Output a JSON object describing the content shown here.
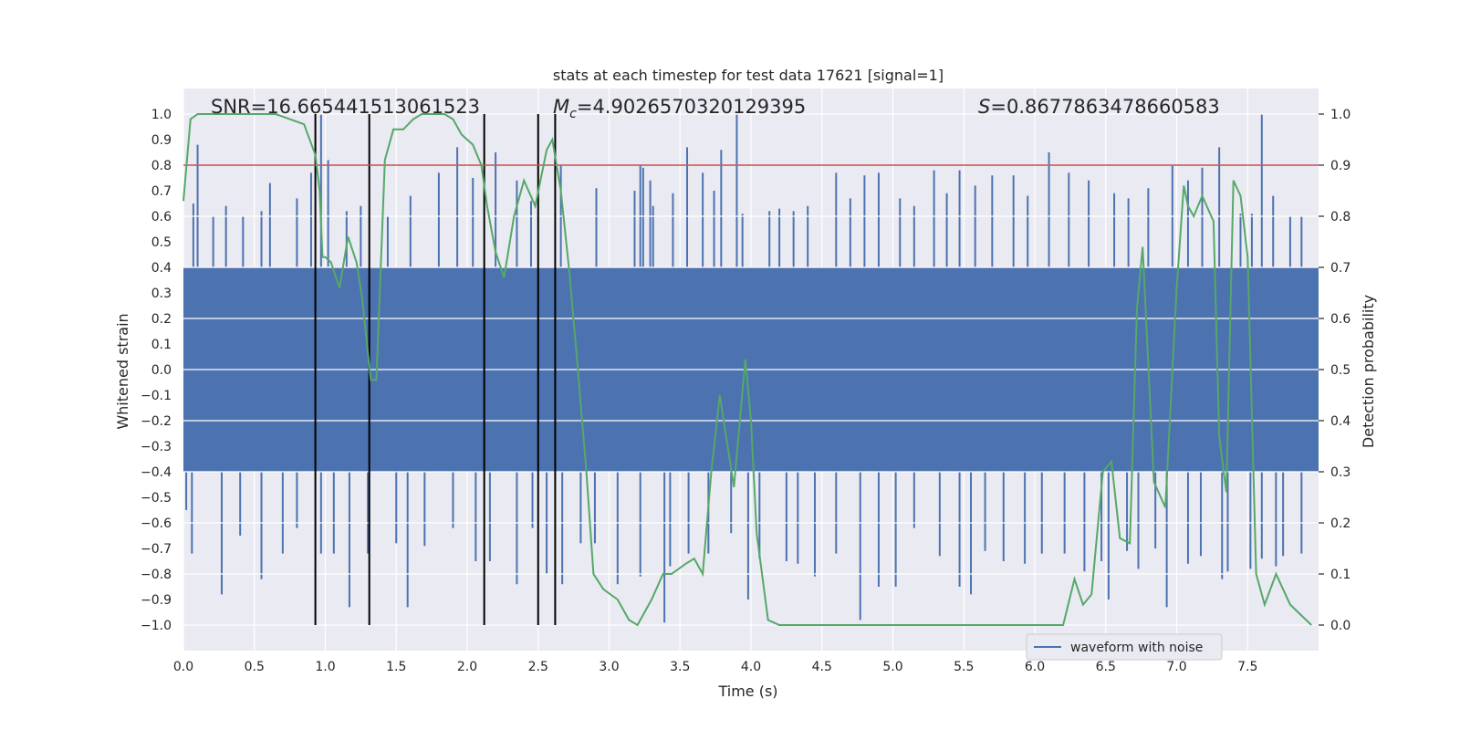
{
  "chart_data": {
    "type": "line",
    "title": "stats at each timestep for test data 17621 [signal=1]",
    "xlabel": "Time (s)",
    "ylabel": "Whitened strain",
    "y2label": "Detection probability",
    "xlim": [
      0.0,
      8.0
    ],
    "ylim": [
      -1.1,
      1.1
    ],
    "y2lim": [
      -0.05,
      1.05
    ],
    "grid": true,
    "legend_position": "lower-right",
    "x_ticks": [
      "0.0",
      "0.5",
      "1.0",
      "1.5",
      "2.0",
      "2.5",
      "3.0",
      "3.5",
      "4.0",
      "4.5",
      "5.0",
      "5.5",
      "6.0",
      "6.5",
      "7.0",
      "7.5"
    ],
    "y_ticks": [
      "1.0",
      "0.9",
      "0.8",
      "0.7",
      "0.6",
      "0.5",
      "0.4",
      "0.3",
      "0.2",
      "0.1",
      "0.0",
      "−0.1",
      "−0.2",
      "−0.3",
      "−0.4",
      "−0.5",
      "−0.6",
      "−0.7",
      "−0.8",
      "−0.9",
      "−1.0"
    ],
    "y2_ticks": [
      "1.0",
      "0.9",
      "0.8",
      "0.7",
      "0.6",
      "0.5",
      "0.4",
      "0.3",
      "0.2",
      "0.1",
      "0.0"
    ],
    "annotations": {
      "snr_prefix": "SNR=",
      "snr_value": "16.665441513061523",
      "mc_symbol": "M",
      "mc_subscript": "c",
      "mc_eq": "=",
      "mc_value": "4.9026570320129395",
      "s_symbol": "S",
      "s_eq": "=",
      "s_value": "0.8677863478660583"
    },
    "threshold": {
      "y2": 0.9,
      "color": "#c44e52"
    },
    "event_markers_x": [
      0.93,
      1.31,
      2.12,
      2.5,
      2.62
    ],
    "event_marker_y2_range": [
      0.0,
      1.0
    ],
    "series": [
      {
        "name": "waveform with noise",
        "axis": "left",
        "color": "#4c72b0",
        "dense_band": [
          -0.4,
          0.4
        ],
        "spikes_up": [
          [
            0.07,
            0.65
          ],
          [
            0.1,
            0.88
          ],
          [
            0.21,
            0.6
          ],
          [
            0.3,
            0.64
          ],
          [
            0.42,
            0.6
          ],
          [
            0.55,
            0.62
          ],
          [
            0.61,
            0.73
          ],
          [
            0.8,
            0.67
          ],
          [
            0.9,
            0.77
          ],
          [
            0.97,
            1.0
          ],
          [
            1.02,
            0.82
          ],
          [
            1.15,
            0.62
          ],
          [
            1.25,
            0.64
          ],
          [
            1.44,
            0.6
          ],
          [
            1.6,
            0.68
          ],
          [
            1.8,
            0.77
          ],
          [
            1.93,
            0.87
          ],
          [
            2.04,
            0.75
          ],
          [
            2.2,
            0.85
          ],
          [
            2.35,
            0.74
          ],
          [
            2.45,
            0.66
          ],
          [
            2.66,
            0.8
          ],
          [
            2.91,
            0.71
          ],
          [
            3.18,
            0.7
          ],
          [
            3.22,
            0.8
          ],
          [
            3.24,
            0.79
          ],
          [
            3.29,
            0.74
          ],
          [
            3.31,
            0.64
          ],
          [
            3.45,
            0.69
          ],
          [
            3.55,
            0.87
          ],
          [
            3.66,
            0.77
          ],
          [
            3.74,
            0.7
          ],
          [
            3.79,
            0.86
          ],
          [
            3.9,
            1.0
          ],
          [
            3.94,
            0.61
          ],
          [
            4.13,
            0.62
          ],
          [
            4.2,
            0.63
          ],
          [
            4.3,
            0.62
          ],
          [
            4.4,
            0.64
          ],
          [
            4.6,
            0.77
          ],
          [
            4.7,
            0.67
          ],
          [
            4.8,
            0.76
          ],
          [
            4.9,
            0.77
          ],
          [
            5.05,
            0.67
          ],
          [
            5.15,
            0.64
          ],
          [
            5.29,
            0.78
          ],
          [
            5.38,
            0.69
          ],
          [
            5.47,
            0.78
          ],
          [
            5.58,
            0.72
          ],
          [
            5.7,
            0.76
          ],
          [
            5.85,
            0.76
          ],
          [
            5.95,
            0.68
          ],
          [
            6.1,
            0.85
          ],
          [
            6.24,
            0.77
          ],
          [
            6.38,
            0.74
          ],
          [
            6.56,
            0.69
          ],
          [
            6.66,
            0.67
          ],
          [
            6.8,
            0.71
          ],
          [
            6.97,
            0.8
          ],
          [
            7.08,
            0.74
          ],
          [
            7.18,
            0.79
          ],
          [
            7.3,
            0.87
          ],
          [
            7.45,
            0.61
          ],
          [
            7.53,
            0.61
          ],
          [
            7.6,
            1.0
          ],
          [
            7.68,
            0.68
          ],
          [
            7.8,
            0.6
          ],
          [
            7.88,
            0.6
          ]
        ],
        "spikes_down": [
          [
            0.02,
            -0.55
          ],
          [
            0.06,
            -0.72
          ],
          [
            0.27,
            -0.88
          ],
          [
            0.4,
            -0.65
          ],
          [
            0.55,
            -0.82
          ],
          [
            0.7,
            -0.72
          ],
          [
            0.8,
            -0.62
          ],
          [
            0.97,
            -0.72
          ],
          [
            1.06,
            -0.72
          ],
          [
            1.17,
            -0.93
          ],
          [
            1.3,
            -0.72
          ],
          [
            1.5,
            -0.68
          ],
          [
            1.58,
            -0.93
          ],
          [
            1.7,
            -0.69
          ],
          [
            1.9,
            -0.62
          ],
          [
            2.06,
            -0.75
          ],
          [
            2.16,
            -0.75
          ],
          [
            2.35,
            -0.84
          ],
          [
            2.46,
            -0.62
          ],
          [
            2.56,
            -0.8
          ],
          [
            2.67,
            -0.84
          ],
          [
            2.8,
            -0.68
          ],
          [
            2.9,
            -0.68
          ],
          [
            3.06,
            -0.84
          ],
          [
            3.22,
            -0.81
          ],
          [
            3.39,
            -0.99
          ],
          [
            3.43,
            -0.77
          ],
          [
            3.56,
            -0.72
          ],
          [
            3.7,
            -0.72
          ],
          [
            3.86,
            -0.64
          ],
          [
            3.98,
            -0.9
          ],
          [
            4.06,
            -0.74
          ],
          [
            4.25,
            -0.75
          ],
          [
            4.33,
            -0.76
          ],
          [
            4.45,
            -0.81
          ],
          [
            4.6,
            -0.72
          ],
          [
            4.77,
            -0.98
          ],
          [
            4.9,
            -0.85
          ],
          [
            5.02,
            -0.85
          ],
          [
            5.15,
            -0.62
          ],
          [
            5.33,
            -0.73
          ],
          [
            5.47,
            -0.85
          ],
          [
            5.55,
            -0.88
          ],
          [
            5.65,
            -0.71
          ],
          [
            5.78,
            -0.75
          ],
          [
            5.93,
            -0.76
          ],
          [
            6.05,
            -0.72
          ],
          [
            6.21,
            -0.72
          ],
          [
            6.35,
            -0.79
          ],
          [
            6.47,
            -0.75
          ],
          [
            6.52,
            -0.9
          ],
          [
            6.65,
            -0.71
          ],
          [
            6.73,
            -0.78
          ],
          [
            6.85,
            -0.7
          ],
          [
            6.93,
            -0.93
          ],
          [
            7.08,
            -0.76
          ],
          [
            7.17,
            -0.73
          ],
          [
            7.32,
            -0.82
          ],
          [
            7.36,
            -0.79
          ],
          [
            7.52,
            -0.78
          ],
          [
            7.6,
            -0.74
          ],
          [
            7.7,
            -0.77
          ],
          [
            7.75,
            -0.73
          ],
          [
            7.88,
            -0.72
          ]
        ]
      },
      {
        "name": "",
        "axis": "right",
        "color": "#55a868",
        "x": [
          0.0,
          0.05,
          0.1,
          0.2,
          0.3,
          0.45,
          0.6,
          0.65,
          0.75,
          0.85,
          0.93,
          0.96,
          0.98,
          1.0,
          1.04,
          1.1,
          1.16,
          1.22,
          1.26,
          1.32,
          1.36,
          1.42,
          1.48,
          1.55,
          1.62,
          1.68,
          1.75,
          1.84,
          1.9,
          1.96,
          2.04,
          2.1,
          2.14,
          2.2,
          2.26,
          2.33,
          2.4,
          2.48,
          2.56,
          2.6,
          2.66,
          2.72,
          2.78,
          2.84,
          2.89,
          2.96,
          3.06,
          3.14,
          3.2,
          3.3,
          3.38,
          3.44,
          3.54,
          3.6,
          3.66,
          3.72,
          3.78,
          3.88,
          3.96,
          4.0,
          4.04,
          4.12,
          4.2,
          4.4,
          4.6,
          4.72,
          4.8,
          4.9,
          5.0,
          5.2,
          5.4,
          5.5,
          5.6,
          5.7,
          5.8,
          5.9,
          6.0,
          6.1,
          6.2,
          6.28,
          6.34,
          6.4,
          6.48,
          6.54,
          6.6,
          6.67,
          6.72,
          6.76,
          6.8,
          6.84,
          6.92,
          7.0,
          7.05,
          7.08,
          7.12,
          7.18,
          7.26,
          7.3,
          7.35,
          7.4,
          7.45,
          7.5,
          7.56,
          7.62,
          7.7,
          7.8,
          7.95
        ],
        "values": [
          0.83,
          0.99,
          1.0,
          1.0,
          1.0,
          1.0,
          1.0,
          1.0,
          0.99,
          0.98,
          0.92,
          0.85,
          0.72,
          0.72,
          0.71,
          0.66,
          0.76,
          0.71,
          0.64,
          0.48,
          0.48,
          0.91,
          0.97,
          0.97,
          0.99,
          1.0,
          1.0,
          1.0,
          0.99,
          0.96,
          0.94,
          0.9,
          0.82,
          0.73,
          0.68,
          0.8,
          0.87,
          0.82,
          0.93,
          0.95,
          0.85,
          0.69,
          0.5,
          0.3,
          0.1,
          0.07,
          0.05,
          0.01,
          0.0,
          0.05,
          0.1,
          0.1,
          0.12,
          0.13,
          0.1,
          0.3,
          0.45,
          0.27,
          0.52,
          0.4,
          0.18,
          0.01,
          0.0,
          0.0,
          0.0,
          0.0,
          0.0,
          0.0,
          0.0,
          0.0,
          0.0,
          0.0,
          0.0,
          0.0,
          0.0,
          0.0,
          0.0,
          0.0,
          0.0,
          0.09,
          0.04,
          0.06,
          0.3,
          0.32,
          0.17,
          0.16,
          0.62,
          0.74,
          0.51,
          0.28,
          0.23,
          0.66,
          0.86,
          0.82,
          0.8,
          0.84,
          0.79,
          0.37,
          0.26,
          0.87,
          0.84,
          0.72,
          0.1,
          0.04,
          0.1,
          0.04,
          0.0
        ]
      }
    ]
  },
  "legend": {
    "waveform_label": "waveform with noise"
  }
}
